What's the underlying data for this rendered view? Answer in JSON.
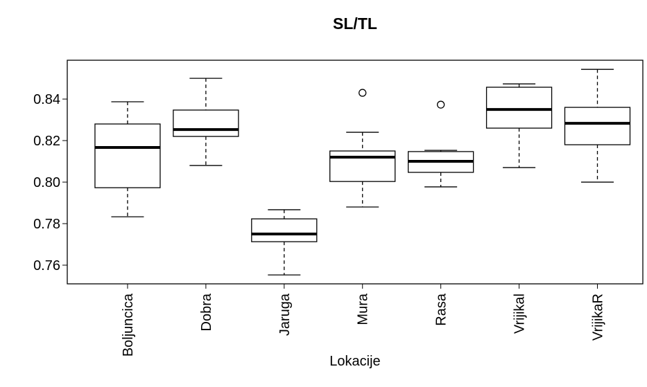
{
  "chart_data": {
    "type": "boxplot",
    "title": "SL/TL",
    "x_label": "Lokacije",
    "categories": [
      "Boljuncica",
      "Dobra",
      "Jaruga",
      "Mura",
      "Rasa",
      "Vrijikal",
      "VrijikaR"
    ],
    "boxes": [
      {
        "min": 0.7833,
        "q1": 0.7973,
        "median": 0.8167,
        "q3": 0.828,
        "max": 0.8387,
        "outliers": []
      },
      {
        "min": 0.808,
        "q1": 0.822,
        "median": 0.8253,
        "q3": 0.8347,
        "max": 0.85,
        "outliers": []
      },
      {
        "min": 0.7553,
        "q1": 0.7713,
        "median": 0.775,
        "q3": 0.7823,
        "max": 0.7867,
        "outliers": []
      },
      {
        "min": 0.788,
        "q1": 0.8003,
        "median": 0.812,
        "q3": 0.815,
        "max": 0.824,
        "outliers": [
          0.843
        ]
      },
      {
        "min": 0.7977,
        "q1": 0.8047,
        "median": 0.81,
        "q3": 0.8147,
        "max": 0.8153,
        "outliers": [
          0.8373
        ]
      },
      {
        "min": 0.807,
        "q1": 0.826,
        "median": 0.835,
        "q3": 0.8457,
        "max": 0.8473,
        "outliers": []
      },
      {
        "min": 0.8,
        "q1": 0.818,
        "median": 0.8283,
        "q3": 0.836,
        "max": 0.8543,
        "outliers": []
      }
    ],
    "color": "#000000",
    "ylim": [
      0.751,
      0.8587
    ],
    "yticks": [
      {
        "value": 0.76,
        "label": "0.76"
      },
      {
        "value": 0.78,
        "label": "0.78"
      },
      {
        "value": 0.8,
        "label": "0.80"
      },
      {
        "value": 0.82,
        "label": "0.82"
      },
      {
        "value": 0.84,
        "label": "0.84"
      }
    ]
  }
}
